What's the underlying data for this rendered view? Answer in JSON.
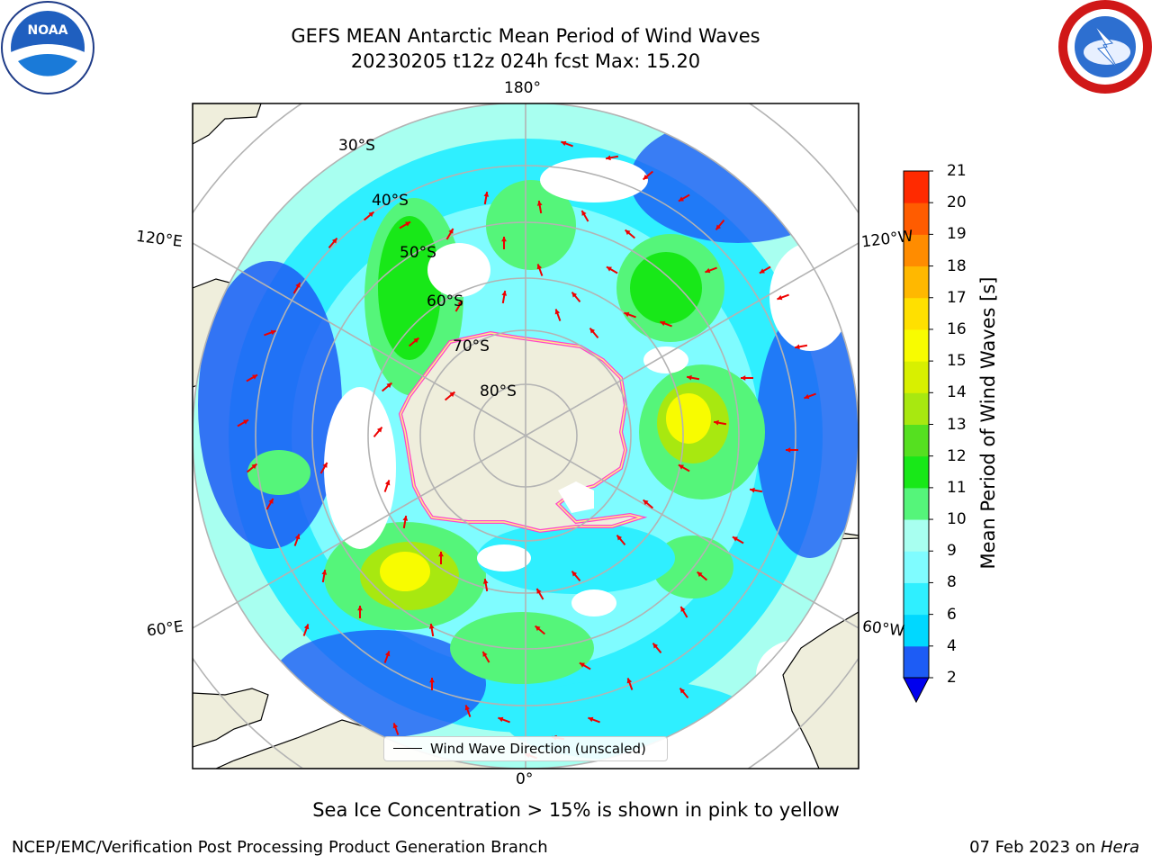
{
  "header": {
    "title_line1": "GEFS MEAN Antarctic Mean Period of Wind Waves",
    "title_line2": "20230205 t12z 024h fcst   Max: 15.20"
  },
  "map": {
    "longitude_labels": {
      "top": "180°",
      "bottom": "0°",
      "upper_left": "120°E",
      "upper_right": "120°W",
      "lower_left": "60°E",
      "lower_right": "60°W"
    },
    "latitude_labels": [
      "30°S",
      "40°S",
      "50°S",
      "60°S",
      "70°S",
      "80°S"
    ],
    "legend_entry": "Wind Wave Direction (unscaled)",
    "land_color": "#efeedc",
    "sea_ice_colors": [
      "#ff33cc",
      "#ffff66"
    ],
    "arrow_color": "#ee0000"
  },
  "colorbar": {
    "label": "Mean Period of Wind Waves [s]",
    "ticks": [
      "2",
      "4",
      "6",
      "8",
      "9",
      "10",
      "11",
      "12",
      "13",
      "14",
      "15",
      "16",
      "17",
      "18",
      "19",
      "20",
      "21"
    ],
    "colors": [
      "#1d5cf5",
      "#00d8ff",
      "#2fefff",
      "#7ffcff",
      "#a8fff0",
      "#55f57a",
      "#18e818",
      "#55e020",
      "#a8e810",
      "#d8f000",
      "#f8fc00",
      "#ffe000",
      "#ffb800",
      "#ff8c00",
      "#ff5c00",
      "#ff2a00"
    ],
    "under_color": "#0000ee"
  },
  "caption": "Sea Ice Concentration > 15% is shown in pink to yellow",
  "footer": {
    "left": "NCEP/EMC/Verification Post Processing Product Generation Branch",
    "right_date": "07 Feb 2023 on ",
    "right_machine": "Hera"
  },
  "logos": {
    "noaa_text": "NOAA"
  }
}
